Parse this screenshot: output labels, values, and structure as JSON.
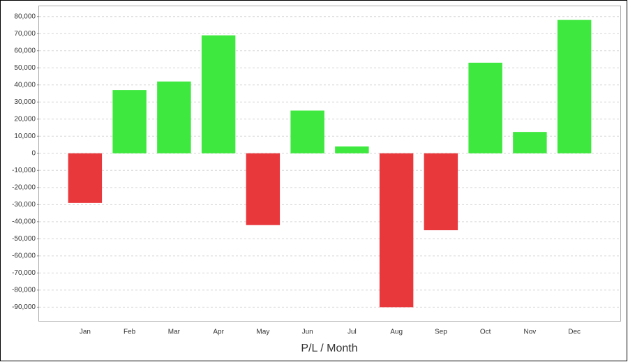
{
  "chart_data": {
    "type": "bar",
    "x_label": "P/L / Month",
    "categories": [
      "Jan",
      "Feb",
      "Mar",
      "Apr",
      "May",
      "Jun",
      "Jul",
      "Aug",
      "Sep",
      "Oct",
      "Nov",
      "Dec"
    ],
    "values": [
      -29000,
      37000,
      42000,
      69000,
      -42000,
      25000,
      4000,
      -90000,
      -45000,
      53000,
      12500,
      78000
    ],
    "positive_color": "#3ee83e",
    "negative_color": "#e8383c",
    "ylim": [
      -98000,
      86000
    ],
    "yticks": [
      {
        "value": 80000,
        "label": "80,000"
      },
      {
        "value": 70000,
        "label": "70,000"
      },
      {
        "value": 60000,
        "label": "60,000"
      },
      {
        "value": 50000,
        "label": "50,000"
      },
      {
        "value": 40000,
        "label": "40,000"
      },
      {
        "value": 30000,
        "label": "30,000"
      },
      {
        "value": 20000,
        "label": "20,000"
      },
      {
        "value": 10000,
        "label": "10,000"
      },
      0,
      {
        "value": -10000,
        "label": "-10,000"
      },
      {
        "value": -20000,
        "label": "-20,000"
      },
      {
        "value": -30000,
        "label": "-30,000"
      },
      {
        "value": -40000,
        "label": "-40,000"
      },
      {
        "value": -50000,
        "label": "-50,000"
      },
      {
        "value": -60000,
        "label": "-60,000"
      },
      {
        "value": -70000,
        "label": "-70,000"
      },
      {
        "value": -80000,
        "label": "-80,000"
      },
      {
        "value": -90000,
        "label": "-90,000"
      }
    ],
    "grid": true
  }
}
